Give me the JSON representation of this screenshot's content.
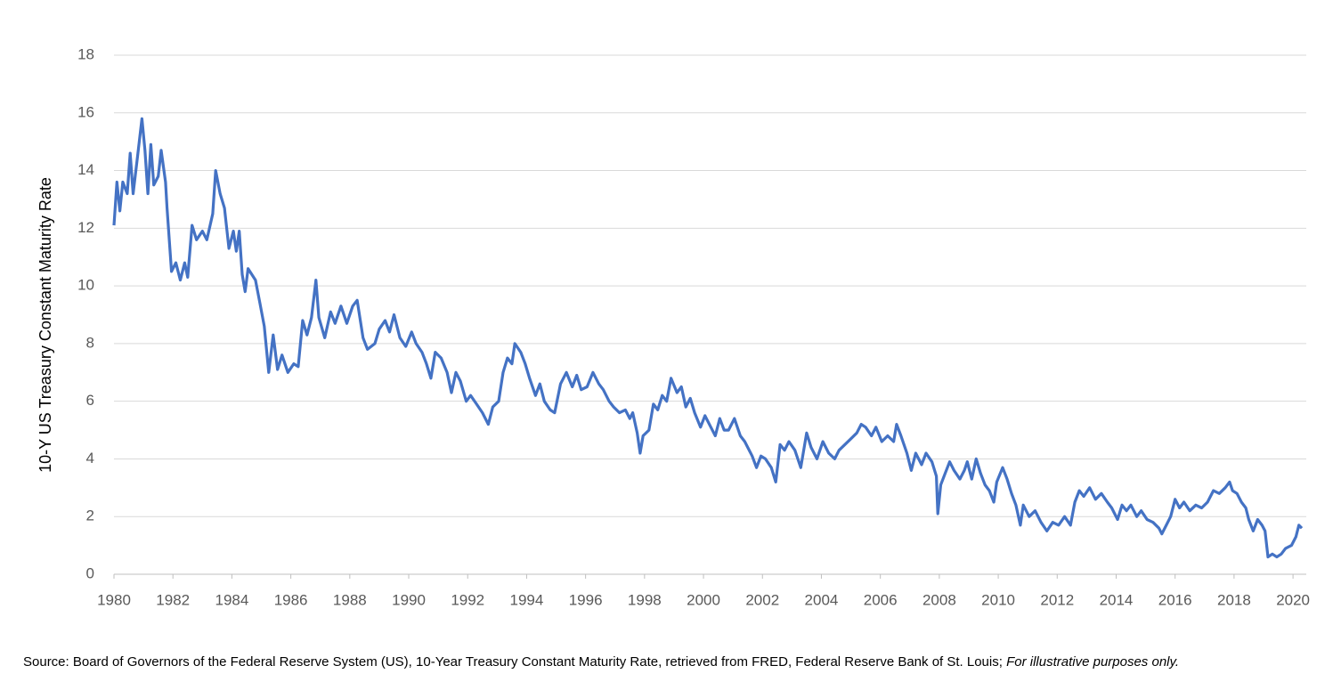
{
  "chart_data": {
    "type": "line",
    "y_label": "10-Y US Treasury Constant Maturity Rate",
    "source": "Source: Board of Governors of the Federal Reserve System (US), 10-Year Treasury Constant Maturity Rate, retrieved from FRED, Federal Reserve Bank of St. Louis;",
    "note": "For illustrative purposes only.",
    "xlim": [
      1980,
      2020.45
    ],
    "xticks": [
      1980,
      1982,
      1984,
      1986,
      1988,
      1990,
      1992,
      1994,
      1996,
      1998,
      2000,
      2002,
      2004,
      2006,
      2008,
      2010,
      2012,
      2014,
      2016,
      2018,
      2020
    ],
    "ylim": [
      0,
      18
    ],
    "yticks": [
      0,
      2,
      4,
      6,
      8,
      10,
      12,
      14,
      16,
      18
    ],
    "grid": true,
    "x": [
      1980.0,
      1980.1,
      1980.2,
      1980.3,
      1980.45,
      1980.55,
      1980.65,
      1980.8,
      1980.95,
      1981.05,
      1981.15,
      1981.25,
      1981.35,
      1981.5,
      1981.6,
      1981.75,
      1981.8,
      1981.95,
      1982.1,
      1982.25,
      1982.4,
      1982.5,
      1982.65,
      1982.8,
      1983.0,
      1983.15,
      1983.35,
      1983.45,
      1983.6,
      1983.75,
      1983.9,
      1984.05,
      1984.15,
      1984.25,
      1984.35,
      1984.45,
      1984.55,
      1984.8,
      1984.95,
      1985.1,
      1985.25,
      1985.4,
      1985.55,
      1985.7,
      1985.9,
      1986.1,
      1986.25,
      1986.4,
      1986.55,
      1986.7,
      1986.85,
      1986.95,
      1987.15,
      1987.35,
      1987.5,
      1987.7,
      1987.9,
      1988.1,
      1988.25,
      1988.45,
      1988.6,
      1988.85,
      1989.0,
      1989.2,
      1989.35,
      1989.5,
      1989.7,
      1989.9,
      1990.1,
      1990.25,
      1990.45,
      1990.6,
      1990.75,
      1990.9,
      1991.1,
      1991.3,
      1991.45,
      1991.6,
      1991.75,
      1991.95,
      1992.1,
      1992.3,
      1992.5,
      1992.7,
      1992.85,
      1993.05,
      1993.2,
      1993.35,
      1993.5,
      1993.6,
      1993.8,
      1993.95,
      1994.1,
      1994.3,
      1994.45,
      1994.6,
      1994.8,
      1994.95,
      1995.15,
      1995.35,
      1995.55,
      1995.7,
      1995.85,
      1996.05,
      1996.25,
      1996.45,
      1996.6,
      1996.8,
      1996.95,
      1997.15,
      1997.35,
      1997.5,
      1997.6,
      1997.75,
      1997.85,
      1997.95,
      1998.15,
      1998.3,
      1998.45,
      1998.6,
      1998.75,
      1998.9,
      1999.1,
      1999.25,
      1999.4,
      1999.55,
      1999.7,
      1999.9,
      2000.05,
      2000.25,
      2000.4,
      2000.55,
      2000.7,
      2000.85,
      2001.05,
      2001.25,
      2001.4,
      2001.65,
      2001.8,
      2001.95,
      2002.1,
      2002.3,
      2002.45,
      2002.6,
      2002.75,
      2002.9,
      2003.1,
      2003.3,
      2003.5,
      2003.65,
      2003.85,
      2004.05,
      2004.25,
      2004.45,
      2004.6,
      2004.8,
      2005.0,
      2005.2,
      2005.35,
      2005.5,
      2005.7,
      2005.85,
      2006.05,
      2006.25,
      2006.45,
      2006.55,
      2006.7,
      2006.9,
      2007.05,
      2007.2,
      2007.4,
      2007.55,
      2007.75,
      2007.9,
      2007.95,
      2008.05,
      2008.2,
      2008.35,
      2008.5,
      2008.7,
      2008.85,
      2008.95,
      2009.1,
      2009.25,
      2009.4,
      2009.55,
      2009.7,
      2009.85,
      2009.95,
      2010.15,
      2010.3,
      2010.45,
      2010.6,
      2010.75,
      2010.85,
      2011.05,
      2011.25,
      2011.45,
      2011.65,
      2011.85,
      2012.05,
      2012.25,
      2012.45,
      2012.6,
      2012.75,
      2012.9,
      2013.1,
      2013.3,
      2013.5,
      2013.7,
      2013.85,
      2014.05,
      2014.2,
      2014.35,
      2014.5,
      2014.7,
      2014.85,
      2015.05,
      2015.25,
      2015.45,
      2015.55,
      2015.7,
      2015.85,
      2016.0,
      2016.15,
      2016.3,
      2016.5,
      2016.7,
      2016.9,
      2017.1,
      2017.3,
      2017.5,
      2017.7,
      2017.85,
      2017.95,
      2018.1,
      2018.25,
      2018.4,
      2018.5,
      2018.65,
      2018.8,
      2018.95,
      2019.05,
      2019.15,
      2019.3,
      2019.45,
      2019.6,
      2019.75,
      2019.95,
      2020.1,
      2020.2,
      2020.3
    ],
    "series": [
      {
        "name": "10-Y US Treasury Constant Maturity Rate",
        "color": "#4472c4",
        "values": [
          12.1,
          13.6,
          12.6,
          13.6,
          13.2,
          14.6,
          13.2,
          14.5,
          15.8,
          14.7,
          13.2,
          14.9,
          13.5,
          13.8,
          14.7,
          13.6,
          12.7,
          10.5,
          10.8,
          10.2,
          10.8,
          10.3,
          12.1,
          11.6,
          11.9,
          11.6,
          12.5,
          14.0,
          13.2,
          12.7,
          11.3,
          11.9,
          11.2,
          11.9,
          10.4,
          9.8,
          10.6,
          10.2,
          9.4,
          8.6,
          7.0,
          8.3,
          7.1,
          7.6,
          7.0,
          7.3,
          7.2,
          8.8,
          8.3,
          8.9,
          10.2,
          8.9,
          8.2,
          9.1,
          8.7,
          9.3,
          8.7,
          9.3,
          9.5,
          8.2,
          7.8,
          8.0,
          8.5,
          8.8,
          8.4,
          9.0,
          8.2,
          7.9,
          8.4,
          8.0,
          7.7,
          7.3,
          6.8,
          7.7,
          7.5,
          7.0,
          6.3,
          7.0,
          6.7,
          6.0,
          6.2,
          5.9,
          5.6,
          5.2,
          5.8,
          6.0,
          7.0,
          7.5,
          7.3,
          8.0,
          7.7,
          7.3,
          6.8,
          6.2,
          6.6,
          6.0,
          5.7,
          5.6,
          6.6,
          7.0,
          6.5,
          6.9,
          6.4,
          6.5,
          7.0,
          6.6,
          6.4,
          6.0,
          5.8,
          5.6,
          5.7,
          5.4,
          5.6,
          4.9,
          4.2,
          4.8,
          5.0,
          5.9,
          5.7,
          6.2,
          6.0,
          6.8,
          6.3,
          6.5,
          5.8,
          6.1,
          5.6,
          5.1,
          5.5,
          5.1,
          4.8,
          5.4,
          5.0,
          5.0,
          5.4,
          4.8,
          4.6,
          4.1,
          3.7,
          4.1,
          4.0,
          3.7,
          3.2,
          4.5,
          4.3,
          4.6,
          4.3,
          3.7,
          4.9,
          4.4,
          4.0,
          4.6,
          4.2,
          4.0,
          4.3,
          4.5,
          4.7,
          4.9,
          5.2,
          5.1,
          4.8,
          5.1,
          4.6,
          4.8,
          4.6,
          5.2,
          4.8,
          4.2,
          3.6,
          4.2,
          3.8,
          4.2,
          3.9,
          3.4,
          2.1,
          3.1,
          3.5,
          3.9,
          3.6,
          3.3,
          3.6,
          3.9,
          3.3,
          4.0,
          3.5,
          3.1,
          2.9,
          2.5,
          3.2,
          3.7,
          3.3,
          2.8,
          2.4,
          1.7,
          2.4,
          2.0,
          2.2,
          1.8,
          1.5,
          1.8,
          1.7,
          2.0,
          1.7,
          2.5,
          2.9,
          2.7,
          3.0,
          2.6,
          2.8,
          2.5,
          2.3,
          1.9,
          2.4,
          2.2,
          2.4,
          2.0,
          2.2,
          1.9,
          1.8,
          1.6,
          1.4,
          1.7,
          2.0,
          2.6,
          2.3,
          2.5,
          2.2,
          2.4,
          2.3,
          2.5,
          2.9,
          2.8,
          3.0,
          3.2,
          2.9,
          2.8,
          2.5,
          2.3,
          1.9,
          1.5,
          1.9,
          1.7,
          1.5,
          0.6,
          0.7,
          0.6,
          0.7,
          0.9,
          1.0,
          1.3,
          1.7,
          1.6
        ]
      }
    ]
  }
}
